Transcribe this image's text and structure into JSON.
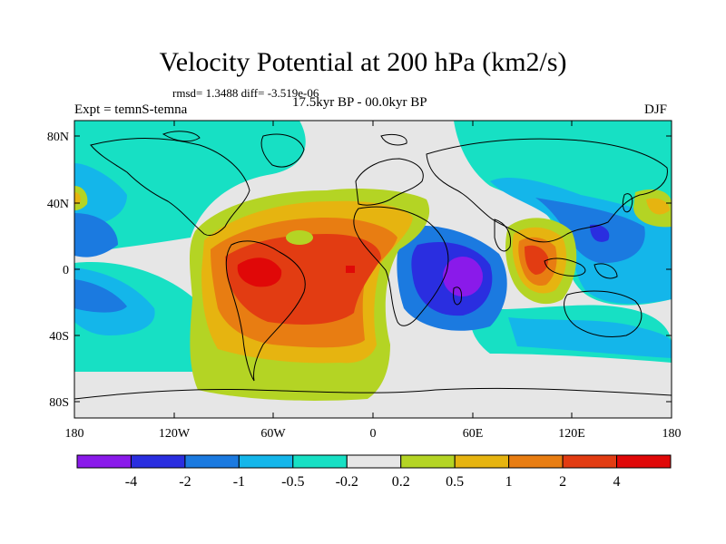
{
  "header": {
    "title": "Velocity Potential at 200 hPa (km2/s)",
    "stats": "rmsd= 1.3488 diff= -3.519e-06",
    "expt": "Expt = temnS-temna",
    "period": "17.5kyr BP - 00.0kyr BP",
    "season": "DJF"
  },
  "axes": {
    "lat_ticks": [
      "80N",
      "40N",
      "0",
      "40S",
      "80S"
    ],
    "lon_ticks": [
      "180",
      "120W",
      "60W",
      "0",
      "60E",
      "120E",
      "180"
    ]
  },
  "colorbar": {
    "labels": [
      "-4",
      "-2",
      "-1",
      "-0.5",
      "-0.2",
      "0.2",
      "0.5",
      "1",
      "2",
      "4"
    ],
    "colors": [
      "#8a1aea",
      "#2a2ee0",
      "#1b7ae0",
      "#14b6ea",
      "#17e0c4",
      "#e6e6e6",
      "#b4d424",
      "#e6b410",
      "#e87d12",
      "#e23c12",
      "#e00808"
    ]
  },
  "colors": {
    "land_outline": "#000000",
    "background": "#e6e6e6"
  }
}
